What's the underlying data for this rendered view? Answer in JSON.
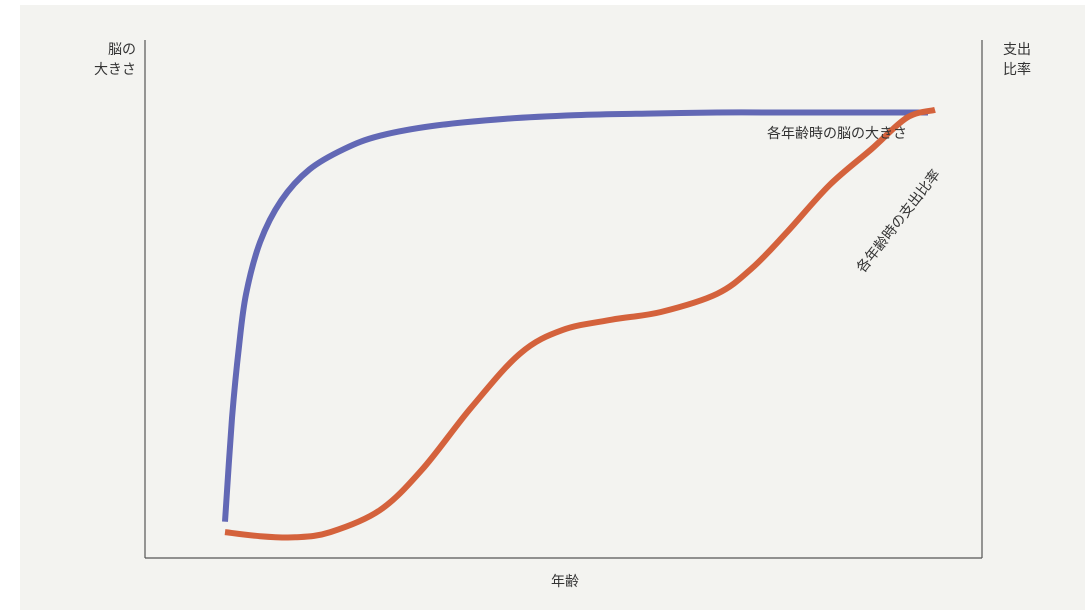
{
  "chart_data": {
    "type": "line",
    "xlabel": "年齢",
    "ylabel_left": "脳の\n大きさ",
    "ylabel_right": "支出\n比率",
    "axis_ticks": "none",
    "grid": false,
    "xlim": [
      0,
      100
    ],
    "ylim": [
      0,
      100
    ],
    "series": [
      {
        "name": "各年齢時の脳の大きさ",
        "color": "#6268b5",
        "axis": "left",
        "points": [
          [
            0,
            7
          ],
          [
            1,
            27
          ],
          [
            2,
            41
          ],
          [
            3,
            51
          ],
          [
            5,
            61
          ],
          [
            8,
            69
          ],
          [
            12,
            75
          ],
          [
            17,
            79
          ],
          [
            22,
            81.5
          ],
          [
            30,
            83.5
          ],
          [
            40,
            84.8
          ],
          [
            50,
            85.5
          ],
          [
            60,
            85.8
          ],
          [
            70,
            86
          ],
          [
            80,
            86
          ],
          [
            88,
            86
          ],
          [
            100,
            86
          ]
        ]
      },
      {
        "name": "各年齢時の支出比率",
        "color": "#d4623c",
        "axis": "right",
        "points": [
          [
            0,
            5
          ],
          [
            5,
            4.2
          ],
          [
            10,
            4
          ],
          [
            15,
            5
          ],
          [
            22,
            9.2
          ],
          [
            28,
            17
          ],
          [
            35,
            29
          ],
          [
            42,
            39.5
          ],
          [
            48,
            44
          ],
          [
            55,
            46
          ],
          [
            62,
            47.5
          ],
          [
            70,
            51
          ],
          [
            75,
            56
          ],
          [
            80,
            63
          ],
          [
            86,
            72
          ],
          [
            92,
            79
          ],
          [
            97,
            85
          ],
          [
            101,
            86.5
          ]
        ]
      }
    ]
  }
}
